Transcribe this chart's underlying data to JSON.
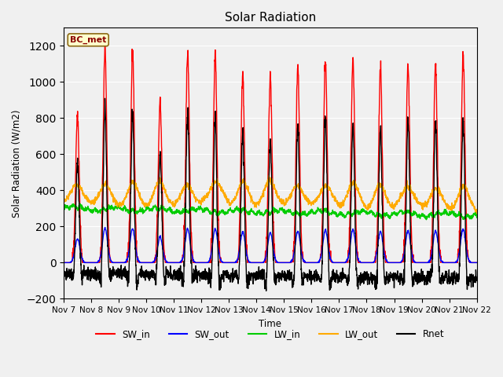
{
  "title": "Solar Radiation",
  "ylabel": "Solar Radiation (W/m2)",
  "xlabel": "Time",
  "ylim": [
    -200,
    1300
  ],
  "background_color": "#f0f0f0",
  "plot_bg_color": "#f0f0f0",
  "legend_label": "BC_met",
  "x_tick_labels": [
    "Nov 7",
    "Nov 8",
    "Nov 9",
    "Nov 10",
    "Nov 11",
    "Nov 12",
    "Nov 13",
    "Nov 14",
    "Nov 15",
    "Nov 16",
    "Nov 17",
    "Nov 18",
    "Nov 19",
    "Nov 20",
    "Nov 21",
    "Nov 22"
  ],
  "series": {
    "SW_in": {
      "color": "#ff0000",
      "lw": 1.0
    },
    "SW_out": {
      "color": "#0000ff",
      "lw": 1.0
    },
    "LW_in": {
      "color": "#00cc00",
      "lw": 1.0
    },
    "LW_out": {
      "color": "#ffaa00",
      "lw": 1.0
    },
    "Rnet": {
      "color": "#000000",
      "lw": 1.0
    }
  },
  "SW_in_peaks": [
    820,
    1190,
    1175,
    895,
    1165,
    1160,
    1050,
    1030,
    1085,
    1120,
    1130,
    1070,
    1090,
    1100,
    1155
  ],
  "n_days": 15,
  "pts_per_hour": 6
}
